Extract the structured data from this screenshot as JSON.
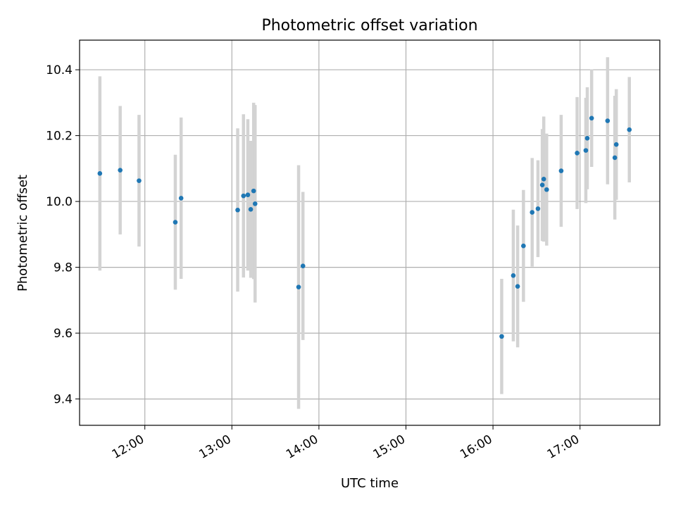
{
  "chart_data": {
    "type": "scatter",
    "title": "Photometric offset variation",
    "xlabel": "UTC time",
    "ylabel": "Photometric offset",
    "x_unit": "hours UTC",
    "xlim": [
      "11:15",
      "17:55"
    ],
    "ylim": [
      9.32,
      10.49
    ],
    "x_ticks": [
      "12:00",
      "13:00",
      "14:00",
      "15:00",
      "16:00",
      "17:00"
    ],
    "y_ticks": [
      9.4,
      9.6,
      9.8,
      10.0,
      10.2,
      10.4
    ],
    "y_tick_labels": [
      "9.4",
      "9.6",
      "9.8",
      "10.0",
      "10.2",
      "10.4"
    ],
    "grid": true,
    "marker_color": "#1f77b4",
    "errorbar_color": "#d3d3d3",
    "series": [
      {
        "points": [
          {
            "x": "11:29",
            "y": 10.085,
            "err": 0.295
          },
          {
            "x": "11:43",
            "y": 10.095,
            "err": 0.195
          },
          {
            "x": "11:56",
            "y": 10.063,
            "err": 0.2
          },
          {
            "x": "12:21",
            "y": 9.937,
            "err": 0.205
          },
          {
            "x": "12:25",
            "y": 10.01,
            "err": 0.245
          },
          {
            "x": "13:04",
            "y": 9.974,
            "err": 0.248
          },
          {
            "x": "13:08",
            "y": 10.017,
            "err": 0.248
          },
          {
            "x": "13:11",
            "y": 10.02,
            "err": 0.23
          },
          {
            "x": "13:13",
            "y": 9.976,
            "err": 0.208
          },
          {
            "x": "13:15",
            "y": 10.032,
            "err": 0.268
          },
          {
            "x": "13:16",
            "y": 9.993,
            "err": 0.3
          },
          {
            "x": "13:46",
            "y": 9.74,
            "err": 0.37
          },
          {
            "x": "13:49",
            "y": 9.804,
            "err": 0.225
          },
          {
            "x": "16:06",
            "y": 9.59,
            "err": 0.175
          },
          {
            "x": "16:14",
            "y": 9.775,
            "err": 0.2
          },
          {
            "x": "16:17",
            "y": 9.742,
            "err": 0.185
          },
          {
            "x": "16:21",
            "y": 9.865,
            "err": 0.17
          },
          {
            "x": "16:27",
            "y": 9.967,
            "err": 0.165
          },
          {
            "x": "16:31",
            "y": 9.978,
            "err": 0.147
          },
          {
            "x": "16:34",
            "y": 10.05,
            "err": 0.17
          },
          {
            "x": "16:35",
            "y": 10.068,
            "err": 0.19
          },
          {
            "x": "16:37",
            "y": 10.036,
            "err": 0.17
          },
          {
            "x": "16:47",
            "y": 10.093,
            "err": 0.17
          },
          {
            "x": "16:58",
            "y": 10.147,
            "err": 0.17
          },
          {
            "x": "17:04",
            "y": 10.155,
            "err": 0.16
          },
          {
            "x": "17:05",
            "y": 10.192,
            "err": 0.155
          },
          {
            "x": "17:08",
            "y": 10.253,
            "err": 0.148
          },
          {
            "x": "17:19",
            "y": 10.245,
            "err": 0.193
          },
          {
            "x": "17:24",
            "y": 10.133,
            "err": 0.188
          },
          {
            "x": "17:25",
            "y": 10.173,
            "err": 0.168
          },
          {
            "x": "17:34",
            "y": 10.218,
            "err": 0.16
          }
        ]
      }
    ]
  }
}
